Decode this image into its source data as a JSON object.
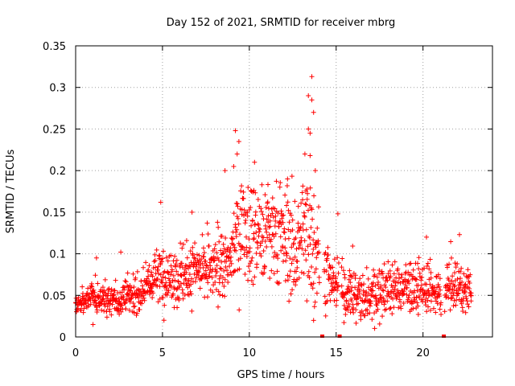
{
  "chart_data": {
    "type": "scatter",
    "title": "Day 152 of 2021, SRMTID for receiver mbrg",
    "xlabel": "GPS time / hours",
    "ylabel": "SRMTID / TECUs",
    "xlim": [
      0,
      24
    ],
    "ylim": [
      0,
      0.35
    ],
    "xticks": [
      0,
      5,
      10,
      15,
      20
    ],
    "xtick_labels": [
      "0",
      "5",
      "10",
      "15",
      "20"
    ],
    "yticks": [
      0,
      0.05,
      0.1,
      0.15,
      0.2,
      0.25,
      0.3,
      0.35
    ],
    "ytick_labels": [
      "0",
      "0.05",
      "0.1",
      "0.15",
      "0.2",
      "0.25",
      "0.3",
      "0.35"
    ],
    "grid": true,
    "marker": "+",
    "color": "#ff0000",
    "zero_markers_x": [
      14.2,
      15.2,
      21.2
    ],
    "series": [
      {
        "name": "SRMTID",
        "profile": [
          [
            0.0,
            0.035
          ],
          [
            0.5,
            0.045
          ],
          [
            1.0,
            0.048
          ],
          [
            2.0,
            0.045
          ],
          [
            2.5,
            0.042
          ],
          [
            3.0,
            0.05
          ],
          [
            3.5,
            0.048
          ],
          [
            4.0,
            0.06
          ],
          [
            4.5,
            0.07
          ],
          [
            5.0,
            0.075
          ],
          [
            6.0,
            0.07
          ],
          [
            7.0,
            0.078
          ],
          [
            8.0,
            0.08
          ],
          [
            8.8,
            0.085
          ],
          [
            9.2,
            0.12
          ],
          [
            10.0,
            0.13
          ],
          [
            11.0,
            0.12
          ],
          [
            12.0,
            0.12
          ],
          [
            12.5,
            0.1
          ],
          [
            13.0,
            0.12
          ],
          [
            13.5,
            0.13
          ],
          [
            14.0,
            0.1
          ],
          [
            14.5,
            0.075
          ],
          [
            15.0,
            0.06
          ],
          [
            16.0,
            0.05
          ],
          [
            17.0,
            0.05
          ],
          [
            18.0,
            0.058
          ],
          [
            19.0,
            0.06
          ],
          [
            20.0,
            0.055
          ],
          [
            21.0,
            0.05
          ],
          [
            21.5,
            0.06
          ],
          [
            22.0,
            0.06
          ],
          [
            22.8,
            0.055
          ]
        ],
        "spread": [
          [
            0.0,
            0.012
          ],
          [
            4.0,
            0.018
          ],
          [
            5.0,
            0.03
          ],
          [
            8.8,
            0.03
          ],
          [
            9.5,
            0.05
          ],
          [
            12.0,
            0.05
          ],
          [
            13.5,
            0.07
          ],
          [
            14.5,
            0.03
          ],
          [
            23.0,
            0.02
          ]
        ],
        "peaks": [
          [
            13.6,
            0.313
          ],
          [
            13.4,
            0.29
          ],
          [
            13.6,
            0.285
          ],
          [
            13.7,
            0.27
          ],
          [
            13.4,
            0.25
          ],
          [
            13.5,
            0.245
          ],
          [
            9.2,
            0.248
          ],
          [
            9.4,
            0.235
          ],
          [
            9.3,
            0.22
          ],
          [
            13.2,
            0.22
          ],
          [
            13.5,
            0.218
          ],
          [
            8.6,
            0.2
          ],
          [
            9.1,
            0.205
          ],
          [
            13.8,
            0.2
          ],
          [
            10.3,
            0.21
          ],
          [
            12.2,
            0.19
          ],
          [
            4.9,
            0.162
          ],
          [
            6.7,
            0.15
          ],
          [
            15.1,
            0.148
          ],
          [
            22.1,
            0.123
          ],
          [
            20.2,
            0.12
          ],
          [
            1.2,
            0.095
          ],
          [
            2.6,
            0.102
          ],
          [
            13.7,
            0.02
          ],
          [
            1.0,
            0.015
          ]
        ],
        "x_range": [
          0,
          22.8
        ],
        "point_count": 1500
      }
    ]
  }
}
